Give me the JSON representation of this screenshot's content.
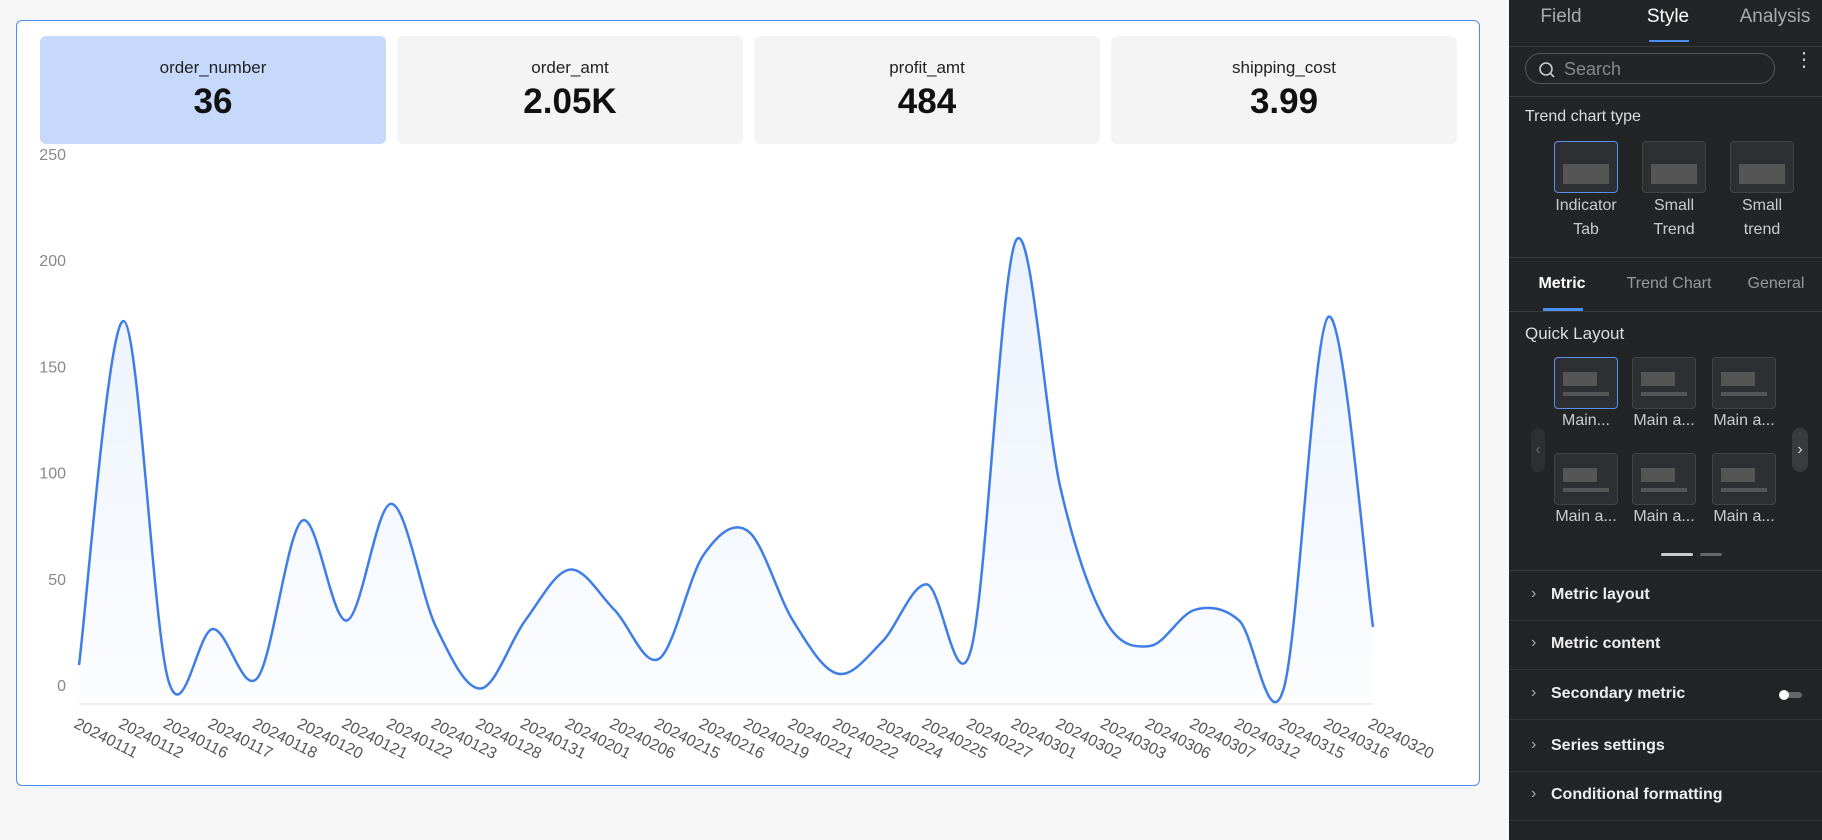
{
  "kpis": [
    {
      "label": "order_number",
      "value": 36
    },
    {
      "label": "order_amt",
      "value": "2.05K"
    },
    {
      "label": "profit_amt",
      "value": 484
    },
    {
      "label": "shipping_cost",
      "value": 3.99
    }
  ],
  "chart_data": {
    "type": "line",
    "categories": [
      "20240111",
      "20240112",
      "20240116",
      "20240117",
      "20240118",
      "20240120",
      "20240121",
      "20240122",
      "20240123",
      "20240128",
      "20240131",
      "20240201",
      "20240206",
      "20240215",
      "20240216",
      "20240219",
      "20240221",
      "20240222",
      "20240224",
      "20240225",
      "20240227",
      "20240301",
      "20240302",
      "20240303",
      "20240306",
      "20240307",
      "20240312",
      "20240315",
      "20240316",
      "20240320"
    ],
    "values": [
      15,
      177,
      8,
      32,
      9,
      83,
      36,
      91,
      33,
      4,
      36,
      60,
      41,
      18,
      67,
      78,
      36,
      11,
      26,
      53,
      23,
      215,
      98,
      36,
      24,
      41,
      36,
      4,
      179,
      33
    ],
    "color": "#3f7ee8",
    "ylim": [
      0,
      250
    ],
    "yticks": [
      0,
      50,
      100,
      150,
      200,
      250
    ],
    "grid": false
  },
  "panel": {
    "tabs": [
      "Field",
      "Style",
      "Analysis"
    ],
    "search_placeholder": "Search",
    "trend_chart_type": {
      "title": "Trend chart type",
      "options": [
        "Indicator Tab",
        "Small Trend",
        "Small trend"
      ]
    },
    "subtabs": [
      "Metric",
      "Trend Chart",
      "General"
    ],
    "quick_layout": {
      "title": "Quick Layout",
      "options": [
        "Main...",
        "Main a...",
        "Main a...",
        "Main a...",
        "Main a...",
        "Main a..."
      ]
    },
    "sections": [
      "Metric layout",
      "Metric content",
      "Secondary metric",
      "Series settings",
      "Conditional formatting"
    ]
  }
}
